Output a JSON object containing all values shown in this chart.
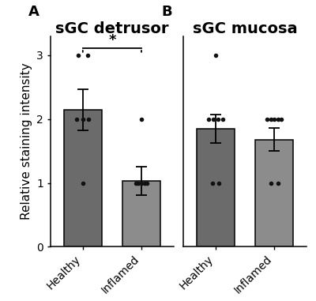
{
  "panel_A_title": "sGC detrusor",
  "panel_B_title": "sGC mucosa",
  "ylabel": "Relative staining intensity",
  "categories": [
    "Healthy",
    "Inflamed"
  ],
  "A_means": [
    2.15,
    1.03
  ],
  "A_errors": [
    0.32,
    0.22
  ],
  "A_dots_healthy": [
    3.0,
    3.0,
    2.0,
    2.0,
    2.0,
    1.0
  ],
  "A_dots_healthy_x": [
    -0.08,
    0.08,
    -0.1,
    0.0,
    0.1,
    0.0
  ],
  "A_dots_inflamed": [
    2.0,
    1.0,
    1.0,
    1.0,
    1.0,
    1.0
  ],
  "A_dots_inflamed_x": [
    0.0,
    -0.1,
    -0.05,
    0.0,
    0.05,
    0.1
  ],
  "B_means": [
    1.85,
    1.68
  ],
  "B_errors": [
    0.22,
    0.18
  ],
  "B_dots_healthy": [
    3.0,
    2.0,
    2.0,
    2.0,
    2.0,
    1.0,
    1.0
  ],
  "B_dots_healthy_x": [
    0.0,
    -0.12,
    -0.04,
    0.04,
    0.12,
    -0.06,
    0.06
  ],
  "B_dots_inflamed": [
    2.0,
    2.0,
    2.0,
    2.0,
    2.0,
    1.0,
    1.0
  ],
  "B_dots_inflamed_x": [
    -0.12,
    -0.06,
    0.0,
    0.06,
    0.12,
    -0.06,
    0.06
  ],
  "bar_color": "#6b6b6b",
  "bar_color_inflamed_A": "#8c8c8c",
  "bar_color_inflamed_B": "#8c8c8c",
  "ylim": [
    0,
    3.3
  ],
  "yticks": [
    0,
    1,
    2,
    3
  ],
  "dot_color": "#111111",
  "dot_size": 16,
  "panel_label_fontsize": 13,
  "title_fontsize": 14,
  "tick_fontsize": 10,
  "ylabel_fontsize": 11
}
